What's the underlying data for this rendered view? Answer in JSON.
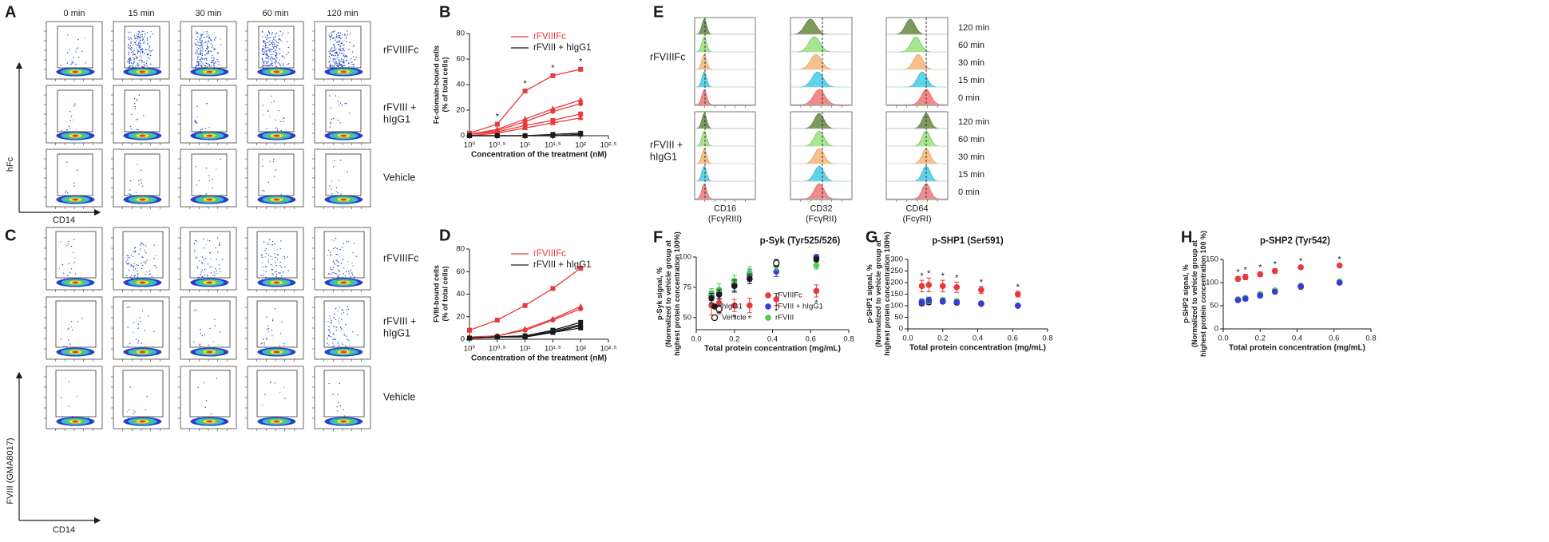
{
  "figure": {
    "A": {
      "label": "A",
      "columns": [
        "0 min",
        "15 min",
        "30 min",
        "60 min",
        "120 min"
      ],
      "rows": [
        "rFVIIIFc",
        "rFVIII +\nhIgG1",
        "Vehicle"
      ],
      "y_axis": "hFc",
      "x_axis": "CD14"
    },
    "C": {
      "label": "C",
      "rows": [
        "rFVIIIFc",
        "rFVIII +\nhIgG1",
        "Vehicle"
      ],
      "y_axis": "FVIII (GMA8017)",
      "x_axis": "CD14"
    },
    "E": {
      "label": "E",
      "rows": [
        "rFVIIIFc",
        "rFVIII +\nhIgG1"
      ],
      "times": [
        "120 min",
        "60 min",
        "30 min",
        "15 min",
        "0 min"
      ],
      "markers": [
        "CD16\n(FcγRIII)",
        "CD32\n(FcγRII)",
        "CD64\n(FcγRI)"
      ]
    }
  },
  "chart_data": [
    {
      "type": "line",
      "label": "B",
      "ylabel": "Fc-domain-bound cells\n(% of total cells)",
      "xlabel": "Concentration of the treatment (nM)",
      "xscale": "log",
      "x": [
        1,
        3.162,
        10,
        31.62,
        100
      ],
      "xlim": [
        1,
        316.2
      ],
      "xticks": [
        {
          "value": 1,
          "label": "10⁰"
        },
        {
          "value": 3.162,
          "label": "10⁰·⁵"
        },
        {
          "value": 10,
          "label": "10¹"
        },
        {
          "value": 31.62,
          "label": "10¹·⁵"
        },
        {
          "value": 100,
          "label": "10²"
        },
        {
          "value": 316.2,
          "label": "10²·⁵"
        }
      ],
      "ylim": [
        0,
        80
      ],
      "yticks": [
        0,
        20,
        40,
        60,
        80
      ],
      "series": [
        {
          "name": "rFVIIIFc",
          "color": "#e8393b",
          "curves": [
            [
              2,
              9,
              35,
              47,
              52
            ],
            [
              1,
              5,
              13,
              21,
              28
            ],
            [
              1,
              4,
              11,
              19,
              25
            ],
            [
              1,
              3,
              8,
              12,
              17
            ],
            [
              0,
              2,
              6,
              10,
              14
            ]
          ]
        },
        {
          "name": "rFVIII + hIgG1",
          "color": "#1a1a1a",
          "curves": [
            [
              0,
              0,
              0,
              1,
              2
            ],
            [
              0,
              0,
              0,
              0,
              1
            ],
            [
              0,
              0,
              0,
              0,
              1
            ]
          ]
        }
      ],
      "annotations": [
        {
          "text": "*",
          "x": 3.162
        },
        {
          "text": "*",
          "x": 10
        },
        {
          "text": "*",
          "x": 31.62
        },
        {
          "text": "*",
          "x": 100
        }
      ]
    },
    {
      "type": "line",
      "label": "D",
      "ylabel": "FVIII-bound cells\n(% of total cells)",
      "xlabel": "Concentration of the treatment (nM)",
      "xscale": "log",
      "x": [
        1,
        3.162,
        10,
        31.62,
        100
      ],
      "xlim": [
        1,
        316.2
      ],
      "xticks": [
        {
          "value": 1,
          "label": "10⁰"
        },
        {
          "value": 3.162,
          "label": "10⁰·⁵"
        },
        {
          "value": 10,
          "label": "10¹"
        },
        {
          "value": 31.62,
          "label": "10¹·⁵"
        },
        {
          "value": 100,
          "label": "10²"
        },
        {
          "value": 316.2,
          "label": "10²·⁵"
        }
      ],
      "ylim": [
        0,
        80
      ],
      "yticks": [
        0,
        20,
        40,
        60,
        80
      ],
      "series": [
        {
          "name": "rFVIIIFc",
          "color": "#e8393b",
          "curves": [
            [
              8,
              17,
              30,
              45,
              63
            ],
            [
              2,
              3,
              9,
              18,
              29
            ],
            [
              1,
              3,
              8,
              17,
              27
            ]
          ]
        },
        {
          "name": "rFVIII + hIgG1",
          "color": "#1a1a1a",
          "curves": [
            [
              1,
              2,
              3,
              8,
              15
            ],
            [
              1,
              2,
              3,
              7,
              13
            ],
            [
              1,
              2,
              3,
              6,
              12
            ],
            [
              1,
              2,
              2,
              6,
              10
            ]
          ]
        }
      ]
    },
    {
      "type": "scatter",
      "label": "F",
      "title": "p-Syk (Tyr525/526)",
      "ylabel": "p-Syk signal, %\n(Normalized to vehicle group at\nhighest protein concentration 100%)",
      "xlabel": "Total protein concentration (mg/mL)",
      "x": [
        0.08,
        0.12,
        0.2,
        0.28,
        0.42,
        0.63
      ],
      "xlim": [
        0,
        0.8
      ],
      "xticks": [
        {
          "value": 0,
          "label": "0.0"
        },
        0.2,
        0.4,
        0.6,
        0.8
      ],
      "ylim": [
        40,
        100
      ],
      "yticks": [
        50,
        75,
        100
      ],
      "legend": true,
      "annotation_side": "below",
      "series": [
        {
          "name": "rFVIIIFc",
          "color": "#e8393b",
          "marker": "filled",
          "values": [
            60,
            62,
            60,
            60,
            65,
            72
          ],
          "errors": [
            8,
            9,
            5,
            6,
            5,
            5
          ]
        },
        {
          "name": "rFVIII + hIgG1",
          "color": "#3a3adc",
          "marker": "filled",
          "values": [
            68,
            70,
            77,
            85,
            88,
            100
          ],
          "errors": [
            4,
            4,
            5,
            5,
            4,
            2
          ]
        },
        {
          "name": "rFVIII",
          "color": "#4cd04c",
          "marker": "filled",
          "values": [
            70,
            73,
            80,
            87,
            93,
            93
          ],
          "errors": [
            4,
            5,
            5,
            5,
            4,
            3
          ]
        },
        {
          "name": "hIgG1",
          "color": "#1a1a1a",
          "marker": "filled",
          "values": [
            66,
            69,
            76,
            82,
            95,
            98
          ],
          "errors": [
            4,
            4,
            5,
            4,
            3,
            2
          ]
        },
        {
          "name": "Vehicle",
          "color": "#1a1a1a",
          "marker": "open",
          "values": [
            null,
            57,
            null,
            null,
            95,
            null
          ],
          "errors": [
            null,
            3,
            null,
            null,
            2,
            null
          ]
        }
      ],
      "annotations": [
        {
          "text": "*",
          "x": 0.2
        },
        {
          "text": "*",
          "x": 0.28
        },
        {
          "text": "*",
          "x": 0.42
        },
        {
          "text": "*",
          "x": 0.63
        }
      ]
    },
    {
      "type": "scatter",
      "label": "G",
      "title": "p-SHP1 (Ser591)",
      "ylabel": "p-SHP1 signal, %\n(Normalized to vehicle group at\nhighest protein concentration 100%)",
      "xlabel": "Total protein concentration (mg/mL)",
      "x": [
        0.08,
        0.12,
        0.2,
        0.28,
        0.42,
        0.63
      ],
      "xlim": [
        0,
        0.8
      ],
      "xticks": [
        {
          "value": 0,
          "label": "0.0"
        },
        0.2,
        0.4,
        0.6,
        0.8
      ],
      "ylim": [
        0,
        300
      ],
      "yticks": [
        0,
        50,
        100,
        150,
        200,
        250,
        300
      ],
      "annotation_side": "above",
      "series": [
        {
          "color": "#1a1a1a",
          "values": [
            110,
            115,
            118,
            113,
            108,
            100
          ],
          "errors": [
            10,
            10,
            8,
            8,
            6,
            5
          ]
        },
        {
          "color": "#4cd04c",
          "values": [
            120,
            120,
            125,
            120,
            110,
            100
          ],
          "errors": [
            10,
            10,
            8,
            8,
            6,
            5
          ]
        },
        {
          "color": "#3a3adc",
          "values": [
            115,
            125,
            120,
            115,
            110,
            100
          ],
          "errors": [
            12,
            12,
            10,
            8,
            6,
            5
          ]
        },
        {
          "color": "#e8393b",
          "values": [
            185,
            190,
            185,
            180,
            168,
            150
          ],
          "errors": [
            25,
            30,
            25,
            22,
            15,
            12
          ]
        }
      ],
      "annotations": [
        {
          "text": "*",
          "x": 0.08
        },
        {
          "text": "*",
          "x": 0.12
        },
        {
          "text": "*",
          "x": 0.2
        },
        {
          "text": "*",
          "x": 0.28
        },
        {
          "text": "*",
          "x": 0.42
        },
        {
          "text": "*",
          "x": 0.63
        }
      ]
    },
    {
      "type": "scatter",
      "label": "H",
      "title": "p-SHP2 (Tyr542)",
      "ylabel": "p-SHP2 signal, %\n(Normalized to vehicle group at\nhighest protein concentration 100 %)",
      "xlabel": "Total protein concentration (mg/mL)",
      "x": [
        0.08,
        0.12,
        0.2,
        0.28,
        0.42,
        0.63
      ],
      "xlim": [
        0,
        0.8
      ],
      "xticks": [
        {
          "value": 0,
          "label": "0.0"
        },
        0.2,
        0.4,
        0.6,
        0.8
      ],
      "ylim": [
        0,
        150
      ],
      "yticks": [
        0,
        50,
        100,
        150
      ],
      "annotation_side": "above",
      "series": [
        {
          "color": "#1a1a1a",
          "values": [
            63,
            66,
            73,
            82,
            91,
            100
          ],
          "errors": [
            4,
            4,
            5,
            4,
            3,
            2
          ]
        },
        {
          "color": "#4cd04c",
          "values": [
            64,
            67,
            75,
            83,
            93,
            102
          ],
          "errors": [
            4,
            4,
            5,
            4,
            3,
            2
          ]
        },
        {
          "color": "#3a3adc",
          "values": [
            62,
            65,
            72,
            80,
            92,
            100
          ],
          "errors": [
            4,
            4,
            5,
            4,
            3,
            2
          ]
        },
        {
          "color": "#e8393b",
          "values": [
            108,
            112,
            118,
            125,
            133,
            137
          ],
          "errors": [
            5,
            6,
            5,
            5,
            4,
            3
          ]
        }
      ],
      "annotations": [
        {
          "text": "*",
          "x": 0.08
        },
        {
          "text": "*",
          "x": 0.12
        },
        {
          "text": "*",
          "x": 0.2
        },
        {
          "text": "*",
          "x": 0.28
        },
        {
          "text": "*",
          "x": 0.42
        },
        {
          "text": "*",
          "x": 0.63
        }
      ]
    }
  ]
}
